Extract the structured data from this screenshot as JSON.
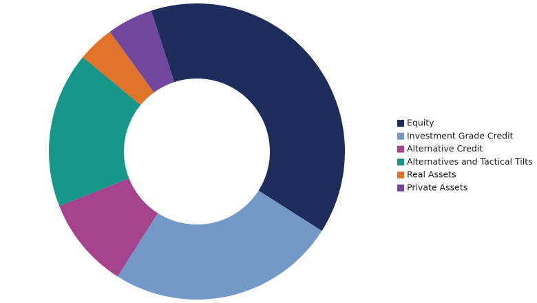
{
  "chart_data": {
    "type": "donut",
    "categories": [
      "Equity",
      "Investment Grade Credit",
      "Alternative Credit",
      "Alternatives and Tactical Tilts",
      "Real Assets",
      "Private Assets"
    ],
    "values": [
      39,
      25,
      10,
      17,
      4,
      5
    ],
    "colors": [
      "#1f2d5c",
      "#7399c6",
      "#a5448d",
      "#16978a",
      "#e0742a",
      "#6f479c"
    ],
    "legend": "right"
  }
}
